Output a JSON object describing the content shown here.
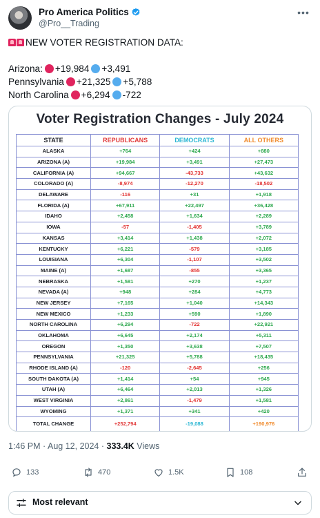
{
  "post": {
    "display_name": "Pro America Politics",
    "handle": "@Pro__Trading",
    "heading": "NEW VOTER REGISTRATION DATA:",
    "lines": [
      {
        "state": "Arizona:",
        "rep": "+19,984",
        "dem": "+3,491"
      },
      {
        "state": "Pennsylvania",
        "rep": "+21,325",
        "dem": "+5,788"
      },
      {
        "state": "North Carolina",
        "rep": "+6,294",
        "dem": "-722"
      }
    ],
    "time": "1:46 PM",
    "date": "Aug 12, 2024",
    "views_count": "333.4K",
    "views_label": "Views"
  },
  "actions": {
    "replies": "133",
    "reposts": "470",
    "likes": "1.5K",
    "bookmarks": "108"
  },
  "sort": {
    "label": "Most relevant"
  },
  "colors": {
    "republican": "#e23b3b",
    "democrat": "#2bb6d3",
    "others": "#f08a2c",
    "positive": "#2fa84f",
    "negative": "#e2302f",
    "verified": "#1d9bf0"
  },
  "chart_data": {
    "type": "table",
    "title": "Voter Registration Changes - July 2024",
    "columns": [
      "STATE",
      "REPUBLICANS",
      "DEMOCRATS",
      "ALL OTHERS"
    ],
    "rows": [
      [
        "ALASKA",
        "+764",
        "+424",
        "+880"
      ],
      [
        "ARIZONA (A)",
        "+19,984",
        "+3,491",
        "+27,473"
      ],
      [
        "CALIFORNIA (A)",
        "+94,667",
        "-43,733",
        "+43,632"
      ],
      [
        "COLORADO (A)",
        "-8,974",
        "-12,270",
        "-18,502"
      ],
      [
        "DELAWARE",
        "-116",
        "+31",
        "+1,918"
      ],
      [
        "FLORIDA (A)",
        "+67,911",
        "+22,497",
        "+36,428"
      ],
      [
        "IDAHO",
        "+2,458",
        "+1,634",
        "+2,289"
      ],
      [
        "IOWA",
        "-57",
        "-1,405",
        "+3,789"
      ],
      [
        "KANSAS",
        "+3,414",
        "+1,438",
        "+2,072"
      ],
      [
        "KENTUCKY",
        "+6,221",
        "-579",
        "+3,185"
      ],
      [
        "LOUISIANA",
        "+6,304",
        "-1,107",
        "+3,502"
      ],
      [
        "MAINE (A)",
        "+1,687",
        "-855",
        "+3,365"
      ],
      [
        "NEBRASKA",
        "+1,581",
        "+270",
        "+1,237"
      ],
      [
        "NEVADA (A)",
        "+948",
        "+284",
        "+4,773"
      ],
      [
        "NEW JERSEY",
        "+7,165",
        "+1,040",
        "+14,343"
      ],
      [
        "NEW MEXICO",
        "+1,233",
        "+590",
        "+1,890"
      ],
      [
        "NORTH CAROLINA",
        "+6,294",
        "-722",
        "+22,921"
      ],
      [
        "OKLAHOMA",
        "+6,645",
        "+2,174",
        "+5,311"
      ],
      [
        "OREGON",
        "+1,350",
        "+3,638",
        "+7,507"
      ],
      [
        "PENNSYLVANIA",
        "+21,325",
        "+5,788",
        "+18,435"
      ],
      [
        "RHODE ISLAND (A)",
        "-120",
        "-2,645",
        "+256"
      ],
      [
        "SOUTH DAKOTA (A)",
        "+1,414",
        "+54",
        "+945"
      ],
      [
        "UTAH (A)",
        "+6,464",
        "+2,013",
        "+1,326"
      ],
      [
        "WEST VIRGINIA",
        "+2,861",
        "-1,479",
        "+1,581"
      ],
      [
        "WYOMING",
        "+1,371",
        "+341",
        "+420"
      ]
    ],
    "total": [
      "TOTAL CHANGE",
      "+252,794",
      "-19,088",
      "+190,976"
    ]
  }
}
